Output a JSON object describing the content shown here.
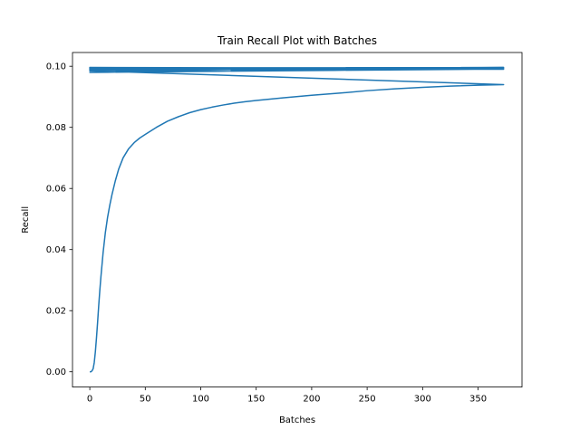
{
  "chart_data": {
    "type": "line",
    "title": "Train Recall Plot with Batches",
    "xlabel": "Batches",
    "ylabel": "Recall",
    "xlim": [
      -15.6,
      389.6
    ],
    "ylim": [
      -0.005,
      0.1045
    ],
    "xticks": [
      0,
      50,
      100,
      150,
      200,
      250,
      300,
      350
    ],
    "xtick_labels": [
      "0",
      "50",
      "100",
      "150",
      "200",
      "250",
      "300",
      "350"
    ],
    "yticks": [
      0.0,
      0.02,
      0.04,
      0.06,
      0.08,
      0.1
    ],
    "ytick_labels": [
      "0.00",
      "0.02",
      "0.04",
      "0.06",
      "0.08",
      "0.10"
    ],
    "grid": false,
    "line_color": "#1f77b4",
    "series": [
      {
        "x": [
          0,
          1,
          2,
          3,
          4,
          5,
          6,
          7,
          8,
          9,
          10,
          12,
          14,
          16,
          18,
          20,
          23,
          26,
          30,
          35,
          40,
          45,
          50,
          60,
          70,
          80,
          90,
          100,
          110,
          120,
          130,
          140,
          150,
          175,
          200,
          225,
          250,
          275,
          300,
          325,
          350,
          373,
          0,
          373,
          0,
          373,
          0,
          373,
          0,
          373,
          0,
          373,
          0,
          373,
          0,
          373,
          0,
          373,
          0,
          373,
          0,
          373,
          0,
          373,
          0,
          373,
          0,
          373,
          0,
          373
        ],
        "y": [
          0.0,
          0.0,
          0.0003,
          0.001,
          0.003,
          0.0065,
          0.011,
          0.016,
          0.0215,
          0.0265,
          0.031,
          0.039,
          0.0455,
          0.0505,
          0.0545,
          0.058,
          0.0625,
          0.0663,
          0.07,
          0.073,
          0.075,
          0.0765,
          0.0777,
          0.08,
          0.082,
          0.0835,
          0.0848,
          0.0858,
          0.0866,
          0.0873,
          0.0879,
          0.0884,
          0.0888,
          0.0897,
          0.0905,
          0.0912,
          0.092,
          0.0926,
          0.0931,
          0.0935,
          0.0938,
          0.094,
          0.0985,
          0.0991,
          0.098,
          0.0993,
          0.0987,
          0.0994,
          0.0995,
          0.0992,
          0.0989,
          0.0995,
          0.0993,
          0.099,
          0.0996,
          0.0993,
          0.099,
          0.0996,
          0.0994,
          0.0992,
          0.0991,
          0.0995,
          0.0993,
          0.099,
          0.0995,
          0.0993,
          0.0992,
          0.0994,
          0.0993,
          0.0993
        ]
      }
    ]
  }
}
